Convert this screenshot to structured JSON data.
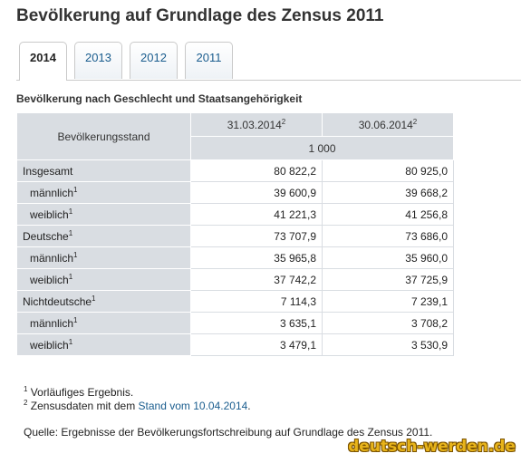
{
  "page": {
    "title": "Bevölkerung auf Grundlage des Zensus 2011",
    "tabs": [
      {
        "label": "2014"
      },
      {
        "label": "2013"
      },
      {
        "label": "2012"
      },
      {
        "label": "2011"
      }
    ],
    "active_tab": "2014",
    "subtitle": "Bevölkerung nach Geschlecht und Staatsangehörigkeit"
  },
  "table": {
    "corner": "Bevölkerungsstand",
    "col1": {
      "date": "31.03.2014",
      "note": "2"
    },
    "col2": {
      "date": "30.06.2014",
      "note": "2"
    },
    "unit": "1 000",
    "rows": [
      {
        "label": "Insgesamt",
        "note": "",
        "v1": "80 822,2",
        "v2": "80 925,0"
      },
      {
        "label": "männlich",
        "note": "1",
        "v1": "39 600,9",
        "v2": "39 668,2"
      },
      {
        "label": "weiblich",
        "note": "1",
        "v1": "41 221,3",
        "v2": "41 256,8"
      },
      {
        "label": "Deutsche",
        "note": "1",
        "v1": "73 707,9",
        "v2": "73 686,0"
      },
      {
        "label": "männlich",
        "note": "1",
        "v1": "35 965,8",
        "v2": "35 960,0"
      },
      {
        "label": "weiblich",
        "note": "1",
        "v1": "37 742,2",
        "v2": "37 725,9"
      },
      {
        "label": "Nichtdeutsche",
        "note": "1",
        "v1": "7 114,3",
        "v2": "7 239,1"
      },
      {
        "label": "männlich",
        "note": "1",
        "v1": "3 635,1",
        "v2": "3 708,2"
      },
      {
        "label": "weiblich",
        "note": "1",
        "v1": "3 479,1",
        "v2": "3 530,9"
      }
    ]
  },
  "footnotes": {
    "n1_mark": "1",
    "n1_text": "Vorläufiges Ergebnis.",
    "n2_mark": "2",
    "n2_text": "Zensusdaten mit dem",
    "n2_link": "Stand vom 10.04.2014",
    "n2_end": "."
  },
  "source": "Quelle: Ergebnisse der Bevölkerungsfortschreibung auf Grundlage des Zensus 2011.",
  "watermark": "deutsch-werden.de",
  "colors": {
    "header_bg": "#d9dde2",
    "link": "#1a5d8e",
    "watermark": "#e8b41a"
  }
}
